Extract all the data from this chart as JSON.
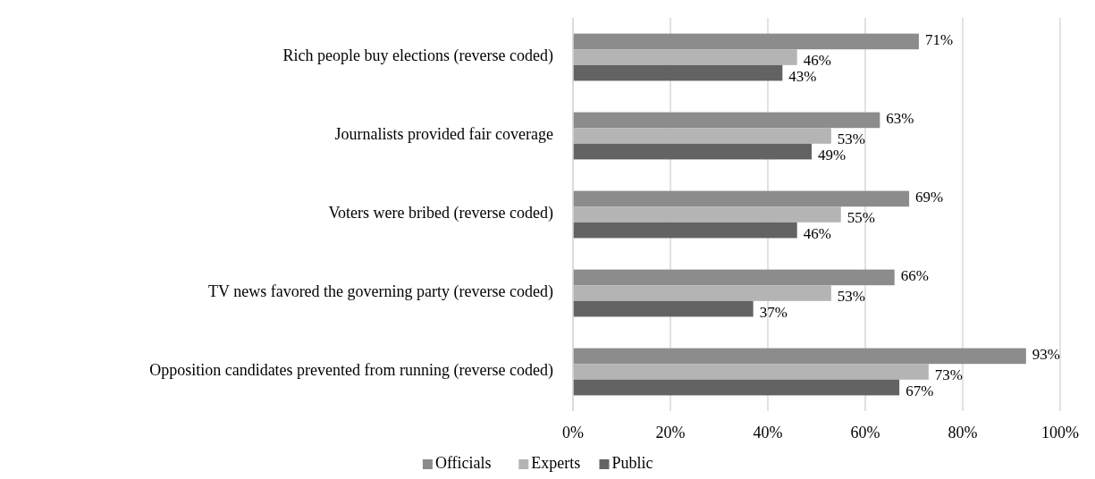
{
  "chart_data": {
    "type": "bar",
    "orientation": "horizontal",
    "categories": [
      "Rich people buy elections (reverse coded)",
      "Journalists provided fair coverage",
      "Voters were bribed  (reverse coded)",
      "TV news favored the governing party (reverse coded)",
      "Opposition candidates prevented from running  (reverse coded)"
    ],
    "series": [
      {
        "name": "Officials",
        "color": "#8c8c8c",
        "values": [
          71,
          63,
          69,
          66,
          93
        ],
        "value_labels": [
          "71%",
          "63%",
          "69%",
          "66%",
          "93%"
        ]
      },
      {
        "name": "Experts",
        "color": "#b4b4b4",
        "values": [
          46,
          53,
          55,
          53,
          73
        ],
        "value_labels": [
          "46%",
          "53%",
          "55%",
          "53%",
          "73%"
        ]
      },
      {
        "name": "Public",
        "color": "#636363",
        "values": [
          43,
          49,
          46,
          37,
          67
        ],
        "value_labels": [
          "43%",
          "49%",
          "46%",
          "37%",
          "67%"
        ]
      }
    ],
    "xlim": [
      0,
      100
    ],
    "xticks": [
      {
        "value": 0,
        "label": "0%"
      },
      {
        "value": 20,
        "label": "20%"
      },
      {
        "value": 40,
        "label": "40%"
      },
      {
        "value": 60,
        "label": "60%"
      },
      {
        "value": 80,
        "label": "80%"
      },
      {
        "value": 100,
        "label": "100%"
      }
    ],
    "grid": "x",
    "legend": "bottom"
  }
}
